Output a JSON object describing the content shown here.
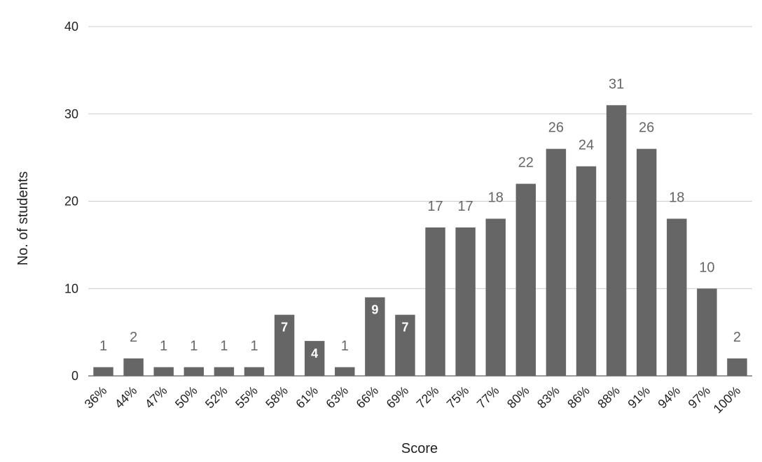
{
  "chart_data": {
    "type": "bar",
    "title": "",
    "xlabel": "Score",
    "ylabel": "No. of students",
    "ylim": [
      0,
      40
    ],
    "yticks": [
      "0",
      "10",
      "20",
      "30",
      "40"
    ],
    "grid": true,
    "legend": "none",
    "bar_color": "#666666",
    "categories": [
      "36%",
      "44%",
      "47%",
      "50%",
      "52%",
      "55%",
      "58%",
      "61%",
      "63%",
      "66%",
      "69%",
      "72%",
      "75%",
      "77%",
      "80%",
      "83%",
      "86%",
      "88%",
      "91%",
      "94%",
      "97%",
      "100%"
    ],
    "values": [
      1,
      2,
      1,
      1,
      1,
      1,
      7,
      4,
      1,
      9,
      7,
      17,
      17,
      18,
      22,
      26,
      24,
      31,
      26,
      18,
      10,
      2
    ],
    "labels": [
      "1",
      "2",
      "1",
      "1",
      "1",
      "1",
      "7",
      "4",
      "1",
      "9",
      "7",
      "17",
      "17",
      "18",
      "22",
      "26",
      "24",
      "31",
      "26",
      "18",
      "10",
      "2"
    ]
  }
}
